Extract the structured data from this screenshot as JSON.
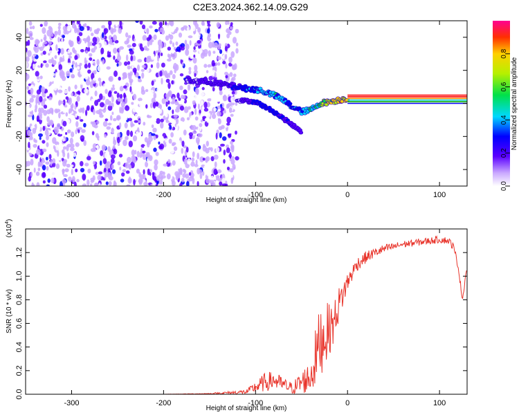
{
  "figure_title": "C2E3.2024.362.14.09.G29",
  "colors": {
    "snr_line": "#e8332a",
    "spectrum_points": "#6a00f0",
    "frame": "#000000",
    "background": "#ffffff"
  },
  "chart_data": [
    {
      "type": "heatmap",
      "title": "C2E3.2024.362.14.09.G29",
      "xlabel": "Height of straight line (km)",
      "ylabel": "Frequency (Hz)",
      "xlim": [
        -350,
        130
      ],
      "ylim": [
        -50,
        50
      ],
      "x_ticks": [
        -300,
        -200,
        -100,
        0,
        100
      ],
      "y_ticks": [
        -40,
        -20,
        0,
        20,
        40
      ],
      "grid": false,
      "colorbar": {
        "label": "Normalized spectral amplitude",
        "range": [
          0,
          1
        ],
        "ticks": [
          "0.0",
          "0.2",
          "0.4",
          "0.6",
          "0.8"
        ]
      },
      "noise_region": {
        "x_range": [
          -350,
          -120
        ],
        "y_range": [
          -50,
          50
        ],
        "amplitude": 0.2
      },
      "signal_track": {
        "x": [
          -175,
          -150,
          -130,
          -110,
          -95,
          -80,
          -70,
          -60,
          -50,
          -40,
          -30,
          -20,
          -10,
          0
        ],
        "y": [
          14,
          13,
          11,
          9,
          8,
          5,
          2,
          -2,
          -5,
          -4,
          0,
          1,
          2,
          3
        ],
        "amplitude": [
          0.2,
          0.25,
          0.3,
          0.4,
          0.5,
          0.55,
          0.5,
          0.45,
          0.5,
          0.6,
          0.7,
          0.85,
          0.9,
          0.95
        ]
      },
      "secondary_track": {
        "x": [
          -120,
          -100,
          -90,
          -80,
          -70,
          -60,
          -50
        ],
        "y": [
          2,
          1,
          -2,
          -5,
          -9,
          -13,
          -17
        ],
        "amplitude": [
          0.2,
          0.35,
          0.4,
          0.4,
          0.35,
          0.3,
          0.2
        ]
      },
      "constant_lines": {
        "x_range": [
          0,
          130
        ],
        "y": [
          0,
          1,
          2,
          3,
          4,
          5
        ],
        "colors": [
          "#0000ff",
          "#00aa00",
          "#00c8c8",
          "#ff8c00",
          "#ff0000",
          "#ff0000"
        ]
      }
    },
    {
      "type": "line",
      "xlabel": "Height of straight line (km)",
      "ylabel": "SNR (10 * v/v)",
      "scale_note": "(x10",
      "scale_exponent": "4",
      "xlim": [
        -350,
        130
      ],
      "ylim": [
        0,
        1.4
      ],
      "x_ticks": [
        -300,
        -200,
        -100,
        0,
        100
      ],
      "y_ticks": [
        "0.0",
        "0.2",
        "0.4",
        "0.6",
        "0.8",
        "1.0",
        "1.2"
      ],
      "grid": false,
      "series": [
        {
          "x": [
            -350,
            -200,
            -150,
            -110,
            -100,
            -90,
            -80,
            -70,
            -60,
            -50,
            -40,
            -35,
            -30,
            -25,
            -20,
            -15,
            -10,
            -5,
            0,
            10,
            20,
            30,
            40,
            50,
            60,
            70,
            80,
            90,
            100,
            110,
            115,
            120,
            125,
            130
          ],
          "y": [
            0.0,
            0.0,
            0.005,
            0.02,
            0.06,
            0.1,
            0.12,
            0.08,
            0.05,
            0.1,
            0.15,
            0.3,
            0.45,
            0.5,
            0.55,
            0.6,
            0.75,
            0.85,
            0.95,
            1.1,
            1.16,
            1.2,
            1.23,
            1.25,
            1.27,
            1.28,
            1.29,
            1.3,
            1.31,
            1.3,
            1.25,
            1.1,
            0.8,
            1.1
          ],
          "noise": [
            0.0,
            0.0,
            0.004,
            0.02,
            0.05,
            0.08,
            0.08,
            0.06,
            0.05,
            0.1,
            0.14,
            0.25,
            0.3,
            0.28,
            0.22,
            0.18,
            0.15,
            0.12,
            0.08,
            0.06,
            0.05,
            0.04,
            0.04,
            0.03,
            0.03,
            0.03,
            0.03,
            0.03,
            0.03,
            0.03,
            0.03,
            0.03,
            0.02,
            0.02
          ]
        }
      ]
    }
  ]
}
